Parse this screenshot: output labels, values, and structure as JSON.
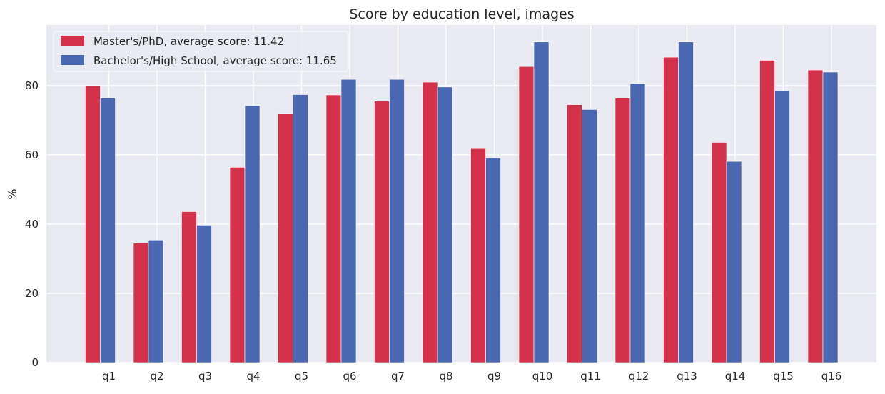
{
  "chart_data": {
    "type": "bar",
    "title": "Score by education level, images",
    "xlabel": "",
    "ylabel": "%",
    "ylim": [
      0,
      97.5
    ],
    "yticks": [
      0,
      20,
      40,
      60,
      80
    ],
    "grid": true,
    "legend_position": "top-left",
    "categories": [
      "q1",
      "q2",
      "q3",
      "q4",
      "q5",
      "q6",
      "q7",
      "q8",
      "q9",
      "q10",
      "q11",
      "q12",
      "q13",
      "q14",
      "q15",
      "q16"
    ],
    "series": [
      {
        "name": "Master's/PhD, average score: 11.42",
        "color": "#d3324a",
        "values": [
          80.0,
          34.5,
          43.6,
          56.4,
          71.8,
          77.3,
          75.5,
          81.0,
          61.8,
          85.5,
          74.5,
          76.4,
          88.2,
          63.6,
          87.3,
          84.5
        ]
      },
      {
        "name": "Bachelor's/High School, average score: 11.65",
        "color": "#4a68b1",
        "values": [
          76.4,
          35.4,
          39.7,
          74.2,
          77.4,
          81.8,
          81.8,
          79.6,
          59.1,
          92.6,
          73.1,
          80.6,
          92.6,
          58.1,
          78.5,
          83.9
        ]
      }
    ]
  }
}
